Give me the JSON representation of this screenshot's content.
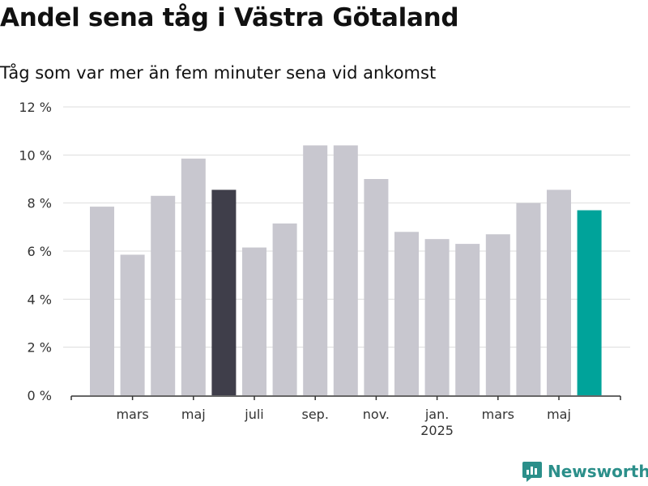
{
  "title": "Andel sena tåg i Västra Götaland",
  "subtitle": "Tåg som var mer än fem minuter sena vid ankomst",
  "brand": {
    "name": "Newsworthy",
    "color": "#2b8f8a",
    "icon": "newsworthy-logo-icon"
  },
  "colors": {
    "default": "#c8c7cf",
    "highlight": "#3f3e4a",
    "latest": "#00a39a",
    "grid": "#dddddd",
    "axis": "#333333"
  },
  "chart_data": {
    "type": "bar",
    "categories": [
      "2024-02",
      "2024-03",
      "2024-04",
      "2024-05",
      "2024-06",
      "2024-07",
      "2024-08",
      "2024-09",
      "2024-10",
      "2024-11",
      "2024-12",
      "2025-01",
      "2025-02",
      "2025-03",
      "2025-04",
      "2025-05",
      "2025-06"
    ],
    "values": [
      7.85,
      5.85,
      8.3,
      9.85,
      8.55,
      6.15,
      7.15,
      10.4,
      10.4,
      9.0,
      6.8,
      6.5,
      6.3,
      6.7,
      8.0,
      8.55,
      7.7
    ],
    "highlight_index": 4,
    "latest_index": 16,
    "ylim": [
      0,
      12
    ],
    "y_ticks": [
      {
        "value": 0,
        "label": "0 %"
      },
      {
        "value": 2,
        "label": "2 %"
      },
      {
        "value": 4,
        "label": "4 %"
      },
      {
        "value": 6,
        "label": "6 %"
      },
      {
        "value": 8,
        "label": "8 %"
      },
      {
        "value": 10,
        "label": "10 %"
      },
      {
        "value": 12,
        "label": "12 %"
      }
    ],
    "x_labels": [
      {
        "index": 1,
        "label": "mars"
      },
      {
        "index": 3,
        "label": "maj"
      },
      {
        "index": 5,
        "label": "juli"
      },
      {
        "index": 7,
        "label": "sep."
      },
      {
        "index": 9,
        "label": "nov."
      },
      {
        "index": 11,
        "label": "jan.",
        "sublabel": "2025"
      },
      {
        "index": 13,
        "label": "mars"
      },
      {
        "index": 15,
        "label": "maj"
      }
    ],
    "grid": true,
    "legend": "none"
  }
}
